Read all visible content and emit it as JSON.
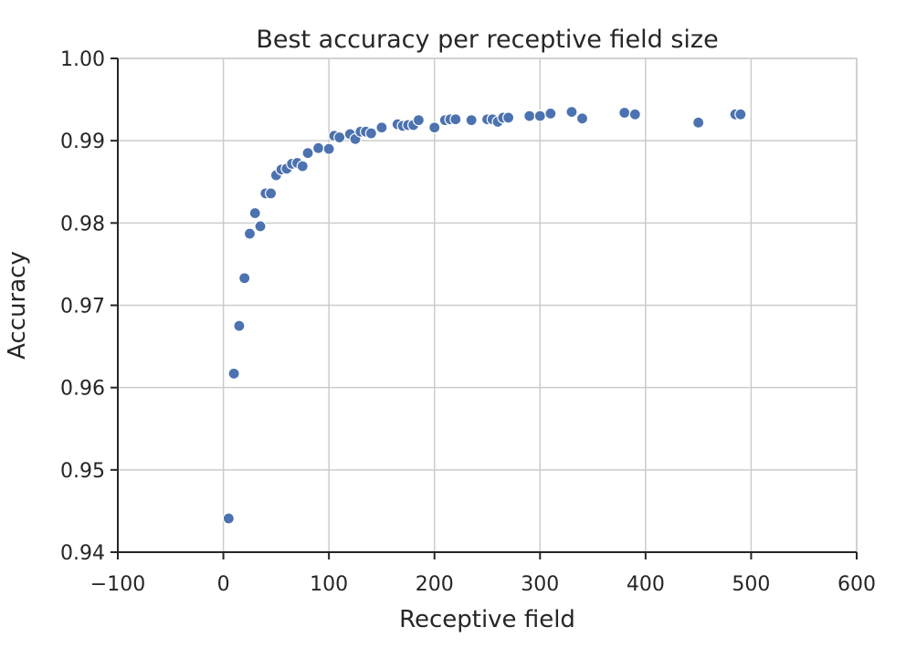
{
  "chart_data": {
    "type": "scatter",
    "title": "Best accuracy per receptive field size",
    "xlabel": "Receptive field",
    "ylabel": "Accuracy",
    "xlim": [
      -100,
      600
    ],
    "ylim": [
      0.94,
      1.0
    ],
    "xticks": [
      -100,
      0,
      100,
      200,
      300,
      400,
      500,
      600
    ],
    "xtick_labels": [
      "−100",
      "0",
      "100",
      "200",
      "300",
      "400",
      "500",
      "600"
    ],
    "yticks": [
      0.94,
      0.95,
      0.96,
      0.97,
      0.98,
      0.99,
      1.0
    ],
    "ytick_labels": [
      "0.94",
      "0.95",
      "0.96",
      "0.97",
      "0.98",
      "0.99",
      "1.00"
    ],
    "grid": true,
    "marker_color": "#4c72b0",
    "series": [
      {
        "x": [
          5,
          10,
          15,
          20,
          25,
          30,
          35,
          40,
          45,
          50,
          55,
          60,
          65,
          70,
          75,
          80,
          90,
          100,
          105,
          110,
          120,
          125,
          130,
          135,
          140,
          150,
          165,
          170,
          175,
          180,
          185,
          200,
          210,
          215,
          220,
          235,
          250,
          255,
          260,
          265,
          270,
          290,
          300,
          310,
          330,
          340,
          380,
          390,
          450,
          485,
          490
        ],
        "y": [
          0.9441,
          0.9617,
          0.9675,
          0.9733,
          0.9787,
          0.9812,
          0.9796,
          0.9836,
          0.9836,
          0.9858,
          0.9865,
          0.9866,
          0.9872,
          0.9873,
          0.9869,
          0.9885,
          0.9891,
          0.989,
          0.9906,
          0.9904,
          0.9908,
          0.9902,
          0.9911,
          0.9911,
          0.9909,
          0.9916,
          0.992,
          0.9918,
          0.9919,
          0.9919,
          0.9925,
          0.9916,
          0.9925,
          0.9926,
          0.9926,
          0.9925,
          0.9926,
          0.9926,
          0.9923,
          0.9928,
          0.9928,
          0.993,
          0.993,
          0.9933,
          0.9935,
          0.9927,
          0.9934,
          0.9932,
          0.9922,
          0.9932,
          0.9932
        ]
      }
    ]
  }
}
